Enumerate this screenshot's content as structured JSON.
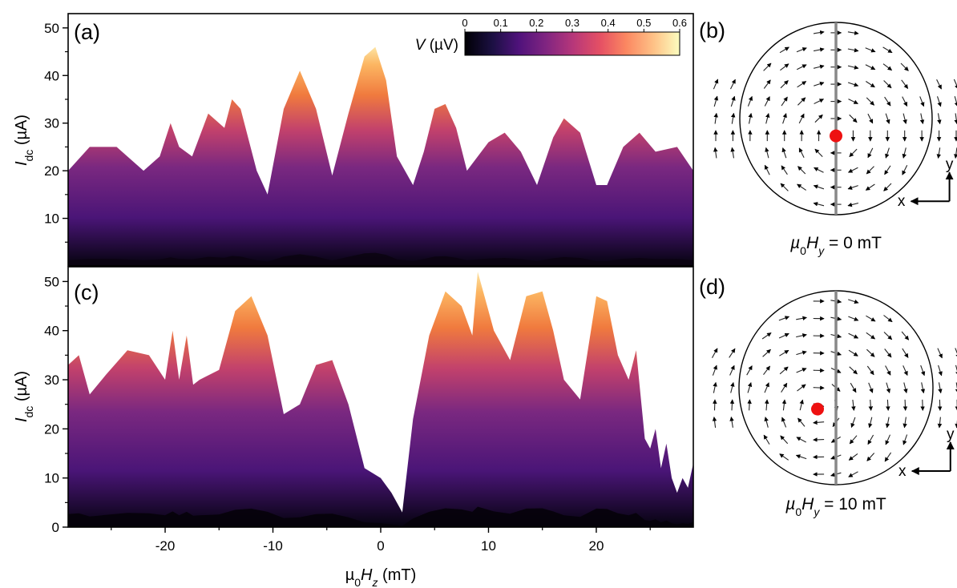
{
  "panels": {
    "a": "(a)",
    "b": "(b)",
    "c": "(c)",
    "d": "(d)"
  },
  "colorbar": {
    "label_var": "V",
    "label_unit": " (µV)",
    "ticks": [
      "0",
      "0.1",
      "0.2",
      "0.3",
      "0.4",
      "0.5",
      "0.6"
    ],
    "range": [
      0,
      0.6
    ],
    "colormap": "magma-like (black → purple → orange → pale yellow)"
  },
  "axes": {
    "ylabel_a_var": "I",
    "ylabel_a_sub": "dc",
    "ylabel_a_unit": " (µA)",
    "ylabel_c_var": "I",
    "ylabel_c_sub": "dc",
    "ylabel_c_unit": " (µA)",
    "xlabel_pre": "µ",
    "xlabel_sub0": "0",
    "xlabel_var": "H",
    "xlabel_subz": "z",
    "xlabel_unit": " (mT)",
    "x_ticks": [
      "-20",
      "-10",
      "0",
      "10",
      "20"
    ],
    "y_ticks_a": [
      "10",
      "20",
      "30",
      "40",
      "50"
    ],
    "y_ticks_c": [
      "0",
      "10",
      "20",
      "30",
      "40",
      "50"
    ]
  },
  "insets": {
    "b_label_pre": "µ",
    "b_label_sub0": "0",
    "b_label_var": "H",
    "b_label_suby": "y",
    "b_label_val": " = 0 mT",
    "d_label_pre": "µ",
    "d_label_sub0": "0",
    "d_label_var": "H",
    "d_label_suby": "y",
    "d_label_val": " = 10 mT",
    "axis_x": "x",
    "axis_y": "y",
    "vortex_color": "#ee1111",
    "vortex_offset_b": [
      0.0,
      -0.18
    ],
    "vortex_offset_d": [
      -0.19,
      -0.22
    ]
  },
  "chart_data": [
    {
      "panel": "(a)",
      "type": "heatmap",
      "description_of_values": "critical current boundary (µA) vs field; voltage ~0 above boundary, colored below",
      "xlabel": "µ0Hz (mT)",
      "ylabel": "Idc (µA)",
      "xlim": [
        -29,
        29
      ],
      "ylim": [
        0,
        53
      ],
      "colorbar_range": [
        0,
        0.6
      ],
      "boundary_x": [
        -29,
        -27,
        -24.5,
        -22,
        -20.5,
        -19.5,
        -18.7,
        -17.5,
        -16,
        -14.5,
        -13.8,
        -13,
        -11.5,
        -10.5,
        -9,
        -7.5,
        -6,
        -4.5,
        -3,
        -1.5,
        -0.5,
        0.5,
        1.5,
        3,
        4,
        5,
        6,
        7,
        8,
        10,
        11.5,
        13,
        14.5,
        16,
        17,
        18.5,
        20,
        21,
        22.5,
        24,
        25.5,
        27.5,
        29
      ],
      "boundary_y": [
        20,
        25,
        25,
        20,
        23,
        30,
        25,
        23,
        32,
        29,
        35,
        33,
        20,
        15,
        33,
        41,
        33,
        19,
        32,
        44,
        46,
        39,
        23,
        17,
        24,
        33,
        34,
        29,
        20,
        26,
        28,
        24,
        17,
        27,
        31,
        28,
        17,
        17,
        25,
        28,
        24,
        25,
        20
      ]
    },
    {
      "panel": "(c)",
      "type": "heatmap",
      "description_of_values": "critical current boundary (µA) vs field at µ0Hy = 10 mT",
      "xlabel": "µ0Hz (mT)",
      "ylabel": "Idc (µA)",
      "xlim": [
        -29,
        29
      ],
      "ylim": [
        0,
        53
      ],
      "colorbar_range": [
        0,
        0.6
      ],
      "boundary_x": [
        -29,
        -28,
        -27,
        -25.5,
        -23.5,
        -21.5,
        -20,
        -19.3,
        -18.7,
        -18,
        -17.4,
        -16.8,
        -15,
        -13.5,
        -12,
        -10.5,
        -9,
        -7.5,
        -6,
        -4.5,
        -3,
        -1.5,
        0,
        1,
        2,
        3,
        4.5,
        6,
        7.5,
        8.5,
        9,
        9.5,
        10.5,
        12,
        13.5,
        15,
        16,
        17,
        18.5,
        20,
        21,
        22,
        23,
        23.7,
        24.5,
        25,
        25.5,
        26,
        26.5,
        27,
        27.5,
        28,
        28.5,
        29
      ],
      "boundary_y": [
        33,
        35,
        27,
        31,
        36,
        35,
        30,
        40,
        30,
        39,
        29,
        30,
        32,
        44,
        47,
        39,
        23,
        25,
        33,
        34,
        25,
        12,
        10,
        7,
        3,
        22,
        39,
        48,
        45,
        39,
        52,
        48,
        40,
        34,
        47,
        48,
        40,
        30,
        26,
        47,
        46,
        35,
        30,
        36,
        18,
        16,
        20,
        12,
        17,
        10,
        7,
        10,
        8,
        13
      ]
    }
  ]
}
